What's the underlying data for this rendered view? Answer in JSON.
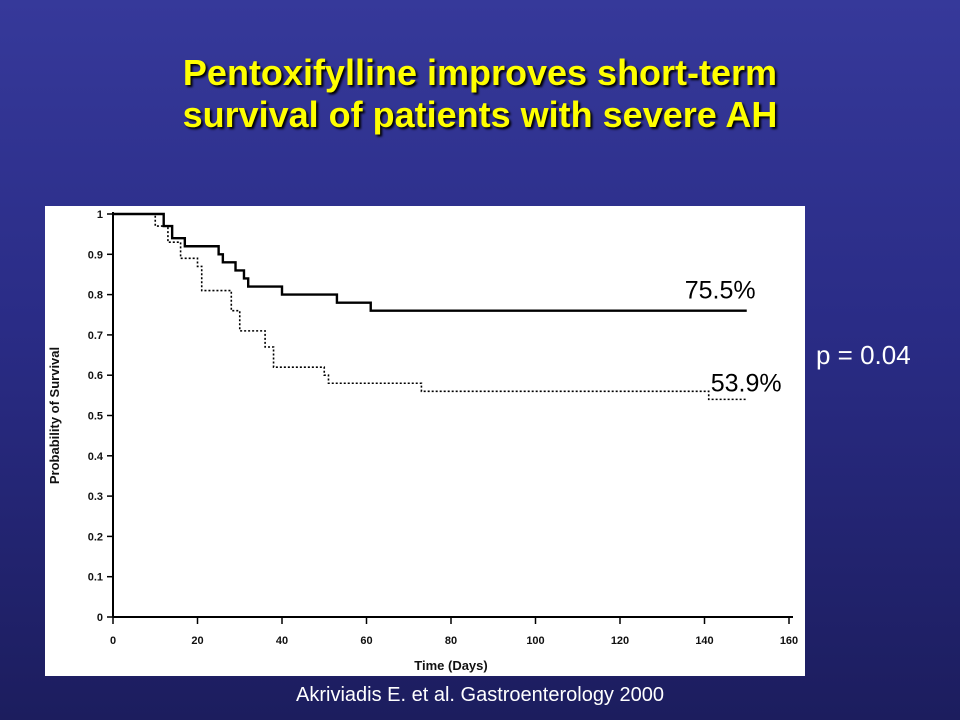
{
  "slide": {
    "title_line1": "Pentoxifylline improves short-term",
    "title_line2": "survival of patients with severe AH",
    "p_value": "p = 0.04",
    "citation": "Akriviadis E. et al. Gastroenterology 2000",
    "title_color": "#ffff00",
    "background_color": "#2a2c86"
  },
  "chart_data": {
    "type": "line",
    "step": true,
    "xlabel": "Time (Days)",
    "ylabel": "Probability of Survival",
    "xlim": [
      0,
      160
    ],
    "ylim": [
      0,
      1
    ],
    "x_ticks": [
      0,
      20,
      40,
      60,
      80,
      100,
      120,
      140,
      160
    ],
    "x_tick_labels": [
      "0",
      "20",
      "40",
      "60",
      "80",
      "100",
      "120",
      "140",
      "160"
    ],
    "y_ticks": [
      0,
      0.1,
      0.2,
      0.3,
      0.4,
      0.5,
      0.6,
      0.7,
      0.8,
      0.9,
      1
    ],
    "y_tick_labels": [
      "0",
      "0.1",
      "0.2",
      "0.3",
      "0.4",
      "0.5",
      "0.6",
      "0.7",
      "0.8",
      "0.9",
      "1"
    ],
    "grid": false,
    "series": [
      {
        "style": "solid",
        "end_label": "75.5%",
        "x": [
          0,
          11,
          12,
          14,
          17,
          24,
          25,
          26,
          29,
          31,
          32,
          39,
          40,
          51,
          53,
          60,
          61,
          150
        ],
        "y": [
          1,
          1,
          0.97,
          0.94,
          0.92,
          0.92,
          0.9,
          0.88,
          0.86,
          0.84,
          0.82,
          0.82,
          0.8,
          0.8,
          0.78,
          0.78,
          0.76,
          0.76
        ]
      },
      {
        "style": "dotted",
        "end_label": "53.9%",
        "x": [
          0,
          8,
          10,
          13,
          16,
          20,
          21,
          27,
          28,
          30,
          31,
          36,
          38,
          41,
          50,
          51,
          72,
          73,
          140,
          141,
          150
        ],
        "y": [
          1,
          1,
          0.97,
          0.93,
          0.89,
          0.87,
          0.81,
          0.81,
          0.76,
          0.71,
          0.71,
          0.67,
          0.62,
          0.62,
          0.6,
          0.58,
          0.58,
          0.56,
          0.56,
          0.54,
          0.54
        ]
      }
    ]
  }
}
